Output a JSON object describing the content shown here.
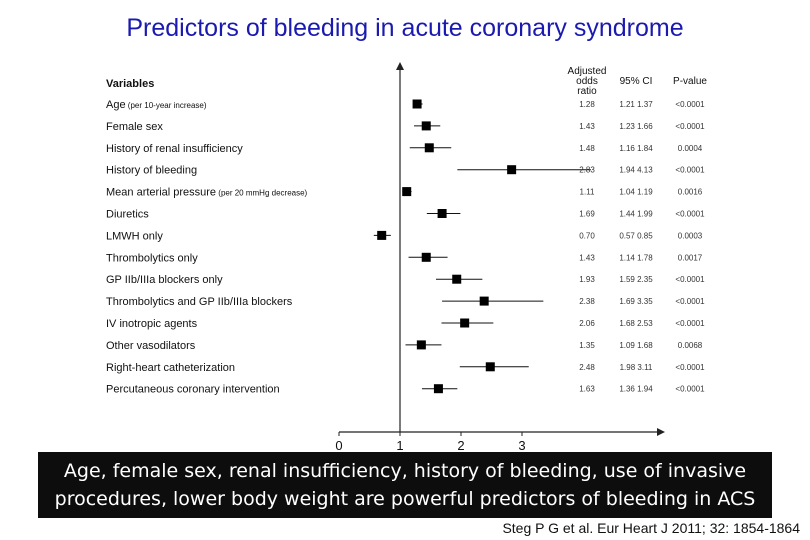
{
  "title": "Predictors of bleeding in acute coronary syndrome",
  "takeaway": {
    "line1": "Age, female sex, renal insufficiency, history of bleeding, use of invasive",
    "line2": "procedures, lower body weight are powerful predictors of bleeding in ACS"
  },
  "citation": "Steg P G et al. Eur Heart J 2011; 32: 1854-1864",
  "chart_data": {
    "type": "forest",
    "headers": {
      "variables": "Variables",
      "or_line1": "Adjusted",
      "or_line2": "odds",
      "or_line3": "ratio",
      "ci": "95% CI",
      "p": "P-value"
    },
    "xlim": [
      0,
      4
    ],
    "x_ticks": [
      "0",
      "1",
      "2",
      "3"
    ],
    "reference_line": 1,
    "rows": [
      {
        "label": "Age",
        "sublabel": "(per 10-year increase)",
        "or": 1.28,
        "ci_low": 1.21,
        "ci_high": 1.37,
        "or_text": "1.28",
        "ci_text": "1.21  1.37",
        "p_text": "<0.0001"
      },
      {
        "label": "Female sex",
        "sublabel": "",
        "or": 1.43,
        "ci_low": 1.23,
        "ci_high": 1.66,
        "or_text": "1.43",
        "ci_text": "1.23  1.66",
        "p_text": "<0.0001"
      },
      {
        "label": "History of renal insufficiency",
        "sublabel": "",
        "or": 1.48,
        "ci_low": 1.16,
        "ci_high": 1.84,
        "or_text": "1.48",
        "ci_text": "1.16  1.84",
        "p_text": "0.0004"
      },
      {
        "label": "History of bleeding",
        "sublabel": "",
        "or": 2.83,
        "ci_low": 1.94,
        "ci_high": 4.13,
        "or_text": "2.83",
        "ci_text": "1.94  4.13",
        "p_text": "<0.0001"
      },
      {
        "label": "Mean arterial pressure",
        "sublabel": "(per 20 mmHg decrease)",
        "or": 1.11,
        "ci_low": 1.04,
        "ci_high": 1.19,
        "or_text": "1.11",
        "ci_text": "1.04  1.19",
        "p_text": "0.0016"
      },
      {
        "label": "Diuretics",
        "sublabel": "",
        "or": 1.69,
        "ci_low": 1.44,
        "ci_high": 1.99,
        "or_text": "1.69",
        "ci_text": "1.44  1.99",
        "p_text": "<0.0001"
      },
      {
        "label": "LMWH only",
        "sublabel": "",
        "or": 0.7,
        "ci_low": 0.57,
        "ci_high": 0.85,
        "or_text": "0.70",
        "ci_text": "0.57  0.85",
        "p_text": "0.0003"
      },
      {
        "label": "Thrombolytics only",
        "sublabel": "",
        "or": 1.43,
        "ci_low": 1.14,
        "ci_high": 1.78,
        "or_text": "1.43",
        "ci_text": "1.14  1.78",
        "p_text": "0.0017"
      },
      {
        "label": "GP IIb/IIIa blockers only",
        "sublabel": "",
        "or": 1.93,
        "ci_low": 1.59,
        "ci_high": 2.35,
        "or_text": "1.93",
        "ci_text": "1.59  2.35",
        "p_text": "<0.0001"
      },
      {
        "label": "Thrombolytics and GP IIb/IIIa blockers",
        "sublabel": "",
        "or": 2.38,
        "ci_low": 1.69,
        "ci_high": 3.35,
        "or_text": "2.38",
        "ci_text": "1.69  3.35",
        "p_text": "<0.0001"
      },
      {
        "label": "IV inotropic agents",
        "sublabel": "",
        "or": 2.06,
        "ci_low": 1.68,
        "ci_high": 2.53,
        "or_text": "2.06",
        "ci_text": "1.68  2.53",
        "p_text": "<0.0001"
      },
      {
        "label": "Other vasodilators",
        "sublabel": "",
        "or": 1.35,
        "ci_low": 1.09,
        "ci_high": 1.68,
        "or_text": "1.35",
        "ci_text": "1.09  1.68",
        "p_text": "0.0068"
      },
      {
        "label": "Right-heart catheterization",
        "sublabel": "",
        "or": 2.48,
        "ci_low": 1.98,
        "ci_high": 3.11,
        "or_text": "2.48",
        "ci_text": "1.98  3.11",
        "p_text": "<0.0001"
      },
      {
        "label": "Percutaneous coronary intervention",
        "sublabel": "",
        "or": 1.63,
        "ci_low": 1.36,
        "ci_high": 1.94,
        "or_text": "1.63",
        "ci_text": "1.36  1.94",
        "p_text": "<0.0001"
      }
    ]
  }
}
